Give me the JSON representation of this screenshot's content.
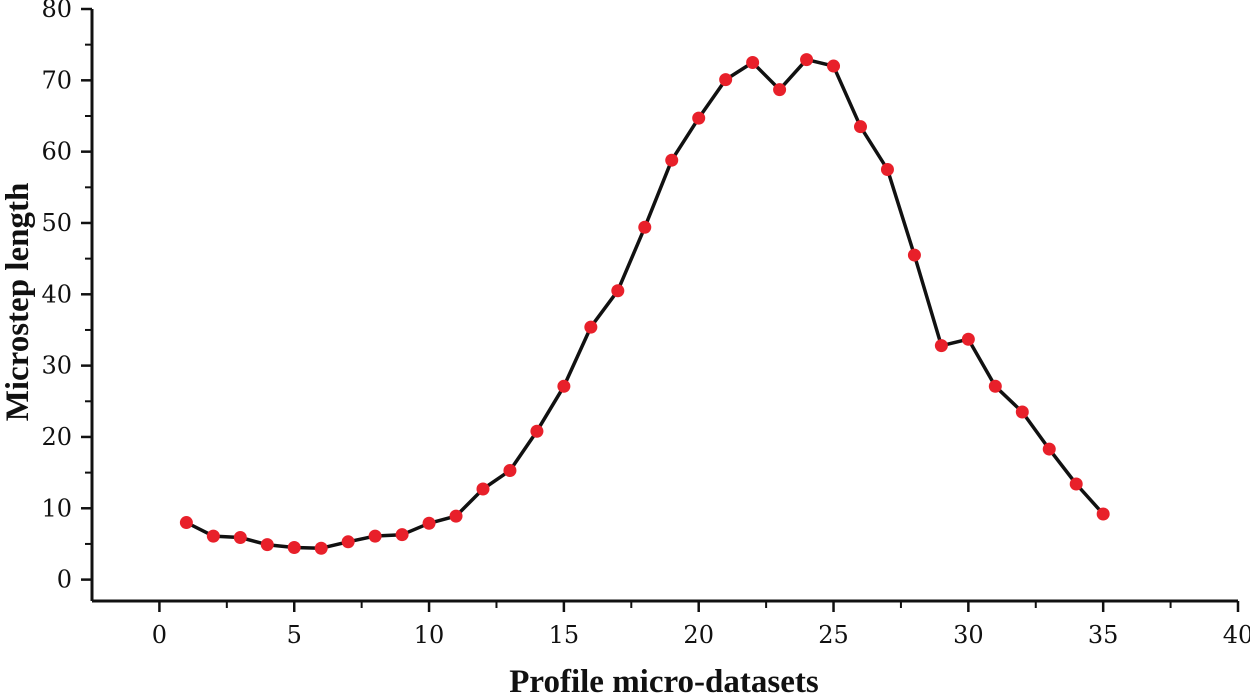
{
  "chart_data": {
    "type": "line",
    "title": "",
    "xlabel": "Profile micro-datasets",
    "ylabel": "Microstep length",
    "xlim": [
      -2.5,
      40
    ],
    "ylim": [
      -3,
      80
    ],
    "xticks": [
      0,
      5,
      10,
      15,
      20,
      25,
      30,
      35,
      40
    ],
    "yticks": [
      0,
      10,
      20,
      30,
      40,
      50,
      60,
      70,
      80
    ],
    "grid": false,
    "legend": "none",
    "colors": {
      "line": "#111111",
      "marker": "#e8202a",
      "axis": "#111111"
    },
    "series": [
      {
        "name": "Microstep length",
        "x": [
          1,
          2,
          3,
          4,
          5,
          6,
          7,
          8,
          9,
          10,
          11,
          12,
          13,
          14,
          15,
          16,
          17,
          18,
          19,
          20,
          21,
          22,
          23,
          24,
          25,
          26,
          27,
          28,
          29,
          30,
          31,
          32,
          33,
          34,
          35
        ],
        "y": [
          8.0,
          6.1,
          5.9,
          4.9,
          4.5,
          4.4,
          5.3,
          6.1,
          6.3,
          7.9,
          8.9,
          12.7,
          15.3,
          20.8,
          27.1,
          35.4,
          40.5,
          49.4,
          58.8,
          64.7,
          70.1,
          72.5,
          68.7,
          72.9,
          72.0,
          63.5,
          57.5,
          45.5,
          32.8,
          33.7,
          27.1,
          23.5,
          18.3,
          13.4,
          9.2
        ]
      }
    ]
  }
}
